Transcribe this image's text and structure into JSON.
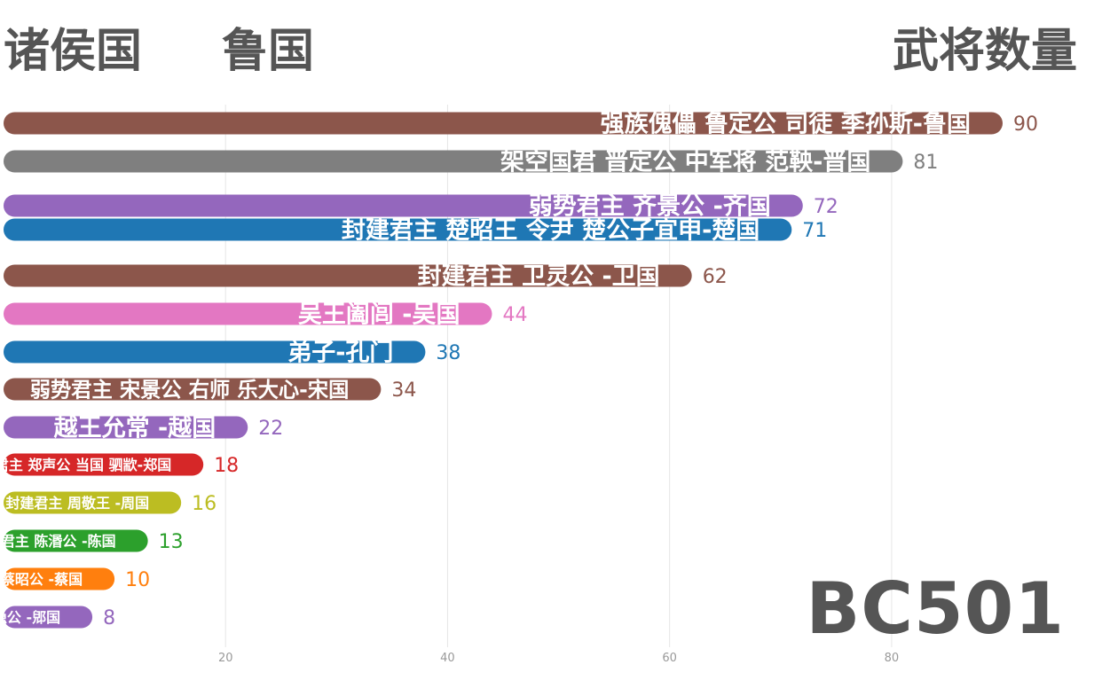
{
  "header": {
    "left_label": "诸侯国",
    "country": "鲁国",
    "right_label": "武将数量"
  },
  "year_label": "BC501",
  "chart_data": {
    "type": "bar",
    "orientation": "horizontal",
    "xlim": [
      0,
      90
    ],
    "x_ticks": [
      20,
      40,
      60,
      80
    ],
    "grid": true,
    "categories": [
      "强族傀儡 鲁定公 司徒 季孙斯-鲁国",
      "架空国君 晋定公 中军将 范鞅-晋国",
      "弱势君主 齐景公 -齐国",
      "封建君主 楚昭王 令尹 楚公子宜申-楚国",
      "封建君主 卫灵公 -卫国",
      "吴王阖闾 -吴国",
      "弟子-孔门",
      "弱势君主 宋景公 右师 乐大心-宋国",
      "越王允常 -越国",
      "封建君主 郑声公 当国 驷歂-郑国",
      "封建君主 周敬王 -周国",
      "封建君主 陈湣公 -陈国",
      "封建君主 蔡昭公 -蔡国",
      "郳隐公 -郳国"
    ],
    "values": [
      90,
      81,
      72,
      71,
      62,
      44,
      38,
      34,
      22,
      18,
      16,
      13,
      10,
      8
    ],
    "value_labels": [
      "90",
      "81",
      "72",
      "71",
      "62",
      "44",
      "38",
      "34",
      "22",
      "18",
      "16",
      "13",
      "10",
      "8"
    ],
    "colors": [
      "#8c564b",
      "#7f7f7f",
      "#9467bd",
      "#1f77b4",
      "#8c564b",
      "#e377c2",
      "#1f77b4",
      "#8c564b",
      "#9467bd",
      "#d62728",
      "#bcbd22",
      "#2ca02c",
      "#ff7f0e",
      "#9467bd"
    ]
  }
}
